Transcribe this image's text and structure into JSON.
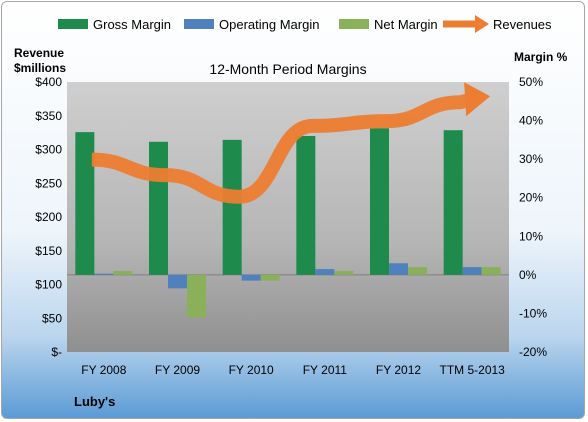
{
  "chart_data": {
    "type": "bar",
    "title": "12-Month Period Margins",
    "company": "Luby's",
    "y_left_label_lines": [
      "Revenue",
      "$millions"
    ],
    "y_right_label": "Margin %",
    "categories": [
      "FY 2008",
      "FY 2009",
      "FY 2010",
      "FY 2011",
      "FY 2012",
      "TTM 5-2013"
    ],
    "y_left_ticks": [
      "$-",
      "$50",
      "$100",
      "$150",
      "$200",
      "$250",
      "$300",
      "$350",
      "$400"
    ],
    "y_right_ticks": [
      "-20%",
      "-10%",
      "0%",
      "10%",
      "20%",
      "30%",
      "40%",
      "50%"
    ],
    "ylim_left": [
      0,
      400
    ],
    "ylim_right": [
      -20,
      50
    ],
    "series": [
      {
        "name": "Gross Margin",
        "type": "bar",
        "axis": "right",
        "color": "#1e8a4c",
        "values": [
          37,
          34.5,
          35,
          36,
          38,
          37.5
        ]
      },
      {
        "name": "Operating Margin",
        "type": "bar",
        "axis": "right",
        "color": "#4f81bd",
        "values": [
          0.3,
          -3.5,
          -1.5,
          1.5,
          3,
          2
        ]
      },
      {
        "name": "Net Margin",
        "type": "bar",
        "axis": "right",
        "color": "#8bb05a",
        "values": [
          1,
          -11,
          -1.5,
          1,
          2,
          2
        ]
      },
      {
        "name": "Revenues",
        "type": "line",
        "axis": "left",
        "color": "#ed7d31",
        "values": [
          285,
          262,
          230,
          335,
          342,
          370
        ]
      }
    ],
    "grid": false,
    "legend": "top"
  }
}
